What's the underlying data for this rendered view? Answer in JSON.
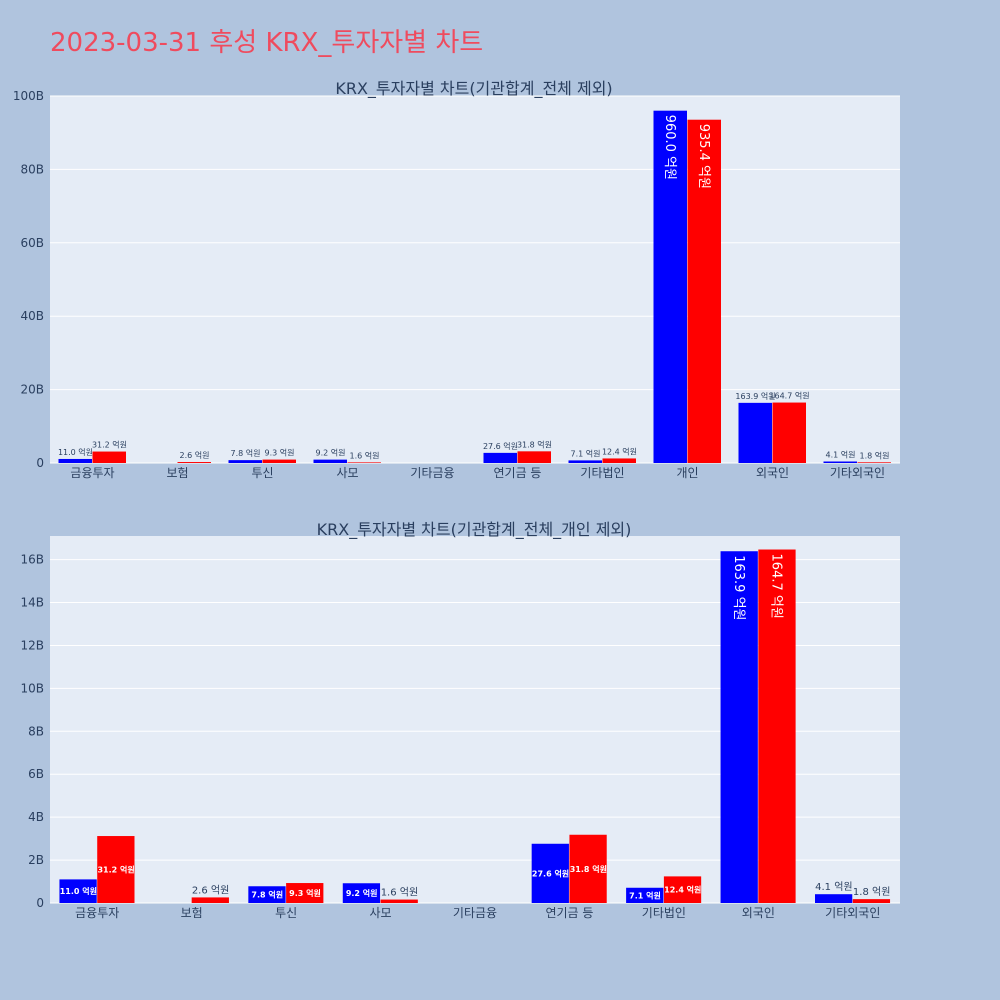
{
  "page_title": "2023-03-31 후성 KRX_투자자별 차트",
  "colors": {
    "background": "#b0c4de",
    "plot_bg": "#e5ecf6",
    "title": "#ef4b5e",
    "series_a": "#0000ff",
    "series_b": "#ff0000"
  },
  "chart_data": [
    {
      "type": "bar",
      "title": "KRX_투자자별 차트(기관합계_전체 제외)",
      "categories": [
        "금융투자",
        "보험",
        "투신",
        "사모",
        "기타금융",
        "연기금 등",
        "기타법인",
        "개인",
        "외국인",
        "기타외국인"
      ],
      "ylim": [
        0,
        100
      ],
      "y_ticks": [
        0,
        20,
        40,
        60,
        80,
        100
      ],
      "y_tick_labels": [
        "0",
        "20B",
        "40B",
        "60B",
        "80B",
        "100B"
      ],
      "series": [
        {
          "values": [
            1.1,
            0,
            0.78,
            0.92,
            0,
            2.76,
            0.71,
            96.0,
            16.39,
            0.41
          ],
          "labels": [
            "11.0 억원",
            "",
            "7.8 억원",
            "9.2 억원",
            "",
            "27.6 억원",
            "7.1 억원",
            "960.0 억원",
            "163.9 억원",
            "4.1 억원"
          ]
        },
        {
          "values": [
            3.12,
            0.26,
            0.93,
            0.16,
            0,
            3.18,
            1.24,
            93.54,
            16.47,
            0.18
          ],
          "labels": [
            "31.2 억원",
            "2.6 억원",
            "9.3 억원",
            "1.6 억원",
            "",
            "31.8 억원",
            "12.4 억원",
            "935.4 억원",
            "164.7 억원",
            "1.8 억원"
          ]
        }
      ],
      "grid": true
    },
    {
      "type": "bar",
      "title": "KRX_투자자별 차트(기관합계_전체_개인 제외)",
      "categories": [
        "금융투자",
        "보험",
        "투신",
        "사모",
        "기타금융",
        "연기금 등",
        "기타법인",
        "외국인",
        "기타외국인"
      ],
      "ylim": [
        0,
        17.1
      ],
      "y_ticks": [
        0,
        2,
        4,
        6,
        8,
        10,
        12,
        14,
        16
      ],
      "y_tick_labels": [
        "0",
        "2B",
        "4B",
        "6B",
        "8B",
        "10B",
        "12B",
        "14B",
        "16B"
      ],
      "series": [
        {
          "values": [
            1.1,
            0,
            0.78,
            0.92,
            0,
            2.76,
            0.71,
            16.39,
            0.41
          ],
          "labels": [
            "11.0 억원",
            "",
            "7.8 억원",
            "9.2 억원",
            "",
            "27.6 억원",
            "7.1 억원",
            "163.9 억원",
            "4.1 억원"
          ]
        },
        {
          "values": [
            3.12,
            0.26,
            0.93,
            0.16,
            0,
            3.18,
            1.24,
            16.47,
            0.18
          ],
          "labels": [
            "31.2 억원",
            "2.6 억원",
            "9.3 억원",
            "1.6 억원",
            "",
            "31.8 억원",
            "12.4 억원",
            "164.7 억원",
            "1.8 억원"
          ]
        }
      ],
      "grid": true
    }
  ]
}
